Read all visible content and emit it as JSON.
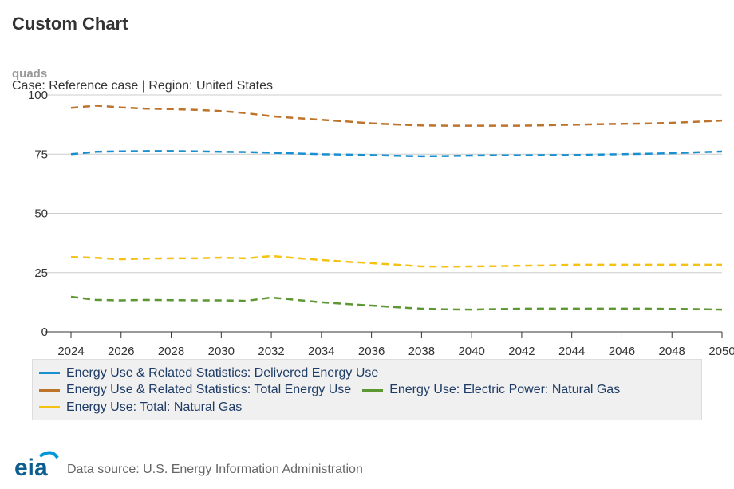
{
  "chart_data": {
    "type": "line",
    "title": "Custom Chart",
    "ylabel": "quads",
    "subtitle": "Case: Reference case | Region: United States",
    "source": "Data source: U.S. Energy Information Administration",
    "logo": "eia",
    "x": [
      2024,
      2025,
      2026,
      2027,
      2028,
      2029,
      2030,
      2031,
      2032,
      2033,
      2034,
      2035,
      2036,
      2037,
      2038,
      2039,
      2040,
      2041,
      2042,
      2043,
      2044,
      2045,
      2046,
      2047,
      2048,
      2049,
      2050
    ],
    "xlim": [
      2024,
      2050
    ],
    "xticks": [
      2024,
      2026,
      2028,
      2030,
      2032,
      2034,
      2036,
      2038,
      2040,
      2042,
      2044,
      2046,
      2048,
      2050
    ],
    "ylim": [
      0,
      100
    ],
    "yticks": [
      0,
      25,
      50,
      75,
      100
    ],
    "grid": true,
    "dashed": true,
    "series": [
      {
        "name": "Energy Use & Related Statistics: Delivered Energy Use",
        "color": "#1a8fcf",
        "values": [
          75,
          76,
          76.2,
          76.3,
          76.3,
          76.2,
          76,
          75.9,
          75.6,
          75.3,
          75,
          74.8,
          74.6,
          74.3,
          74.1,
          74.2,
          74.4,
          74.5,
          74.5,
          74.6,
          74.6,
          74.8,
          75,
          75.2,
          75.4,
          75.8,
          76.1
        ]
      },
      {
        "name": "Energy Use & Related Statistics: Total Energy Use",
        "color": "#bd732a",
        "values": [
          94.5,
          95.5,
          94.7,
          94.2,
          94,
          93.7,
          93.2,
          92.3,
          91,
          90.2,
          89.5,
          88.8,
          88,
          87.5,
          87.1,
          87,
          87,
          87,
          87,
          87.2,
          87.4,
          87.6,
          87.8,
          87.9,
          88.2,
          88.7,
          89.2
        ]
      },
      {
        "name": "Energy Use: Electric Power: Natural Gas",
        "color": "#5d9732",
        "values": [
          14.8,
          13.5,
          13.3,
          13.5,
          13.4,
          13.3,
          13.3,
          13.1,
          14.5,
          13.5,
          12.5,
          11.8,
          11.1,
          10.4,
          9.8,
          9.5,
          9.4,
          9.6,
          9.8,
          9.8,
          9.8,
          9.8,
          9.8,
          9.8,
          9.7,
          9.6,
          9.4
        ]
      },
      {
        "name": "Energy Use: Total: Natural Gas",
        "color": "#f5c214",
        "values": [
          31.6,
          31.2,
          30.6,
          30.9,
          31,
          31,
          31.3,
          31,
          32,
          31.1,
          30.3,
          29.6,
          29,
          28.3,
          27.6,
          27.5,
          27.6,
          27.7,
          27.9,
          28,
          28.3,
          28.3,
          28.3,
          28.3,
          28.3,
          28.3,
          28.3
        ]
      }
    ]
  }
}
